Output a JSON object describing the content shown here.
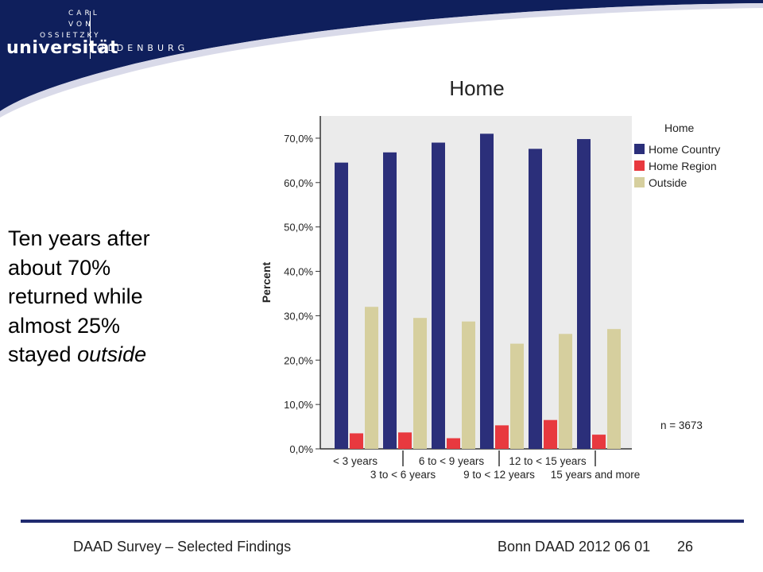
{
  "logo": {
    "carl": "CARL",
    "von": "VON",
    "ossietzky": "OSSIETZKY",
    "universitaet": "universität",
    "oldenburg": "OLDENBURG"
  },
  "slide": {
    "title": "Home",
    "text_lines": [
      "Ten years after",
      "about 70%",
      "returned while",
      "almost 25%",
      "stayed "
    ],
    "text_italic": "outside",
    "n_note": "n = 3673"
  },
  "footer": {
    "left": "DAAD Survey – Selected Findings",
    "right": "Bonn DAAD 2012 06 01",
    "page": "26"
  },
  "colors": {
    "header_navy": "#0f1f5c",
    "home_country": "#2b2f7a",
    "home_region": "#e8393f",
    "outside": "#d6cf9e",
    "plot_bg": "#ebebeb"
  },
  "chart_data": {
    "type": "bar",
    "title": "Home",
    "ylabel": "Percent",
    "xlabel": "",
    "ylim": [
      0,
      75
    ],
    "yticks": [
      "0,0%",
      "10,0%",
      "20,0%",
      "30,0%",
      "40,0%",
      "50,0%",
      "60,0%",
      "70,0%"
    ],
    "categories": [
      "< 3 years",
      "3 to < 6 years",
      "6 to < 9 years",
      "9 to < 12 years",
      "12 to < 15 years",
      "15 years and more"
    ],
    "legend_title": "Home",
    "legend_position": "right",
    "series": [
      {
        "name": "Home Country",
        "values": [
          64.5,
          66.8,
          69.0,
          71.0,
          67.6,
          69.8
        ]
      },
      {
        "name": "Home Region",
        "values": [
          3.5,
          3.7,
          2.4,
          5.3,
          6.5,
          3.2
        ]
      },
      {
        "name": "Outside",
        "values": [
          32.0,
          29.5,
          28.7,
          23.7,
          25.9,
          27.0
        ]
      }
    ]
  }
}
